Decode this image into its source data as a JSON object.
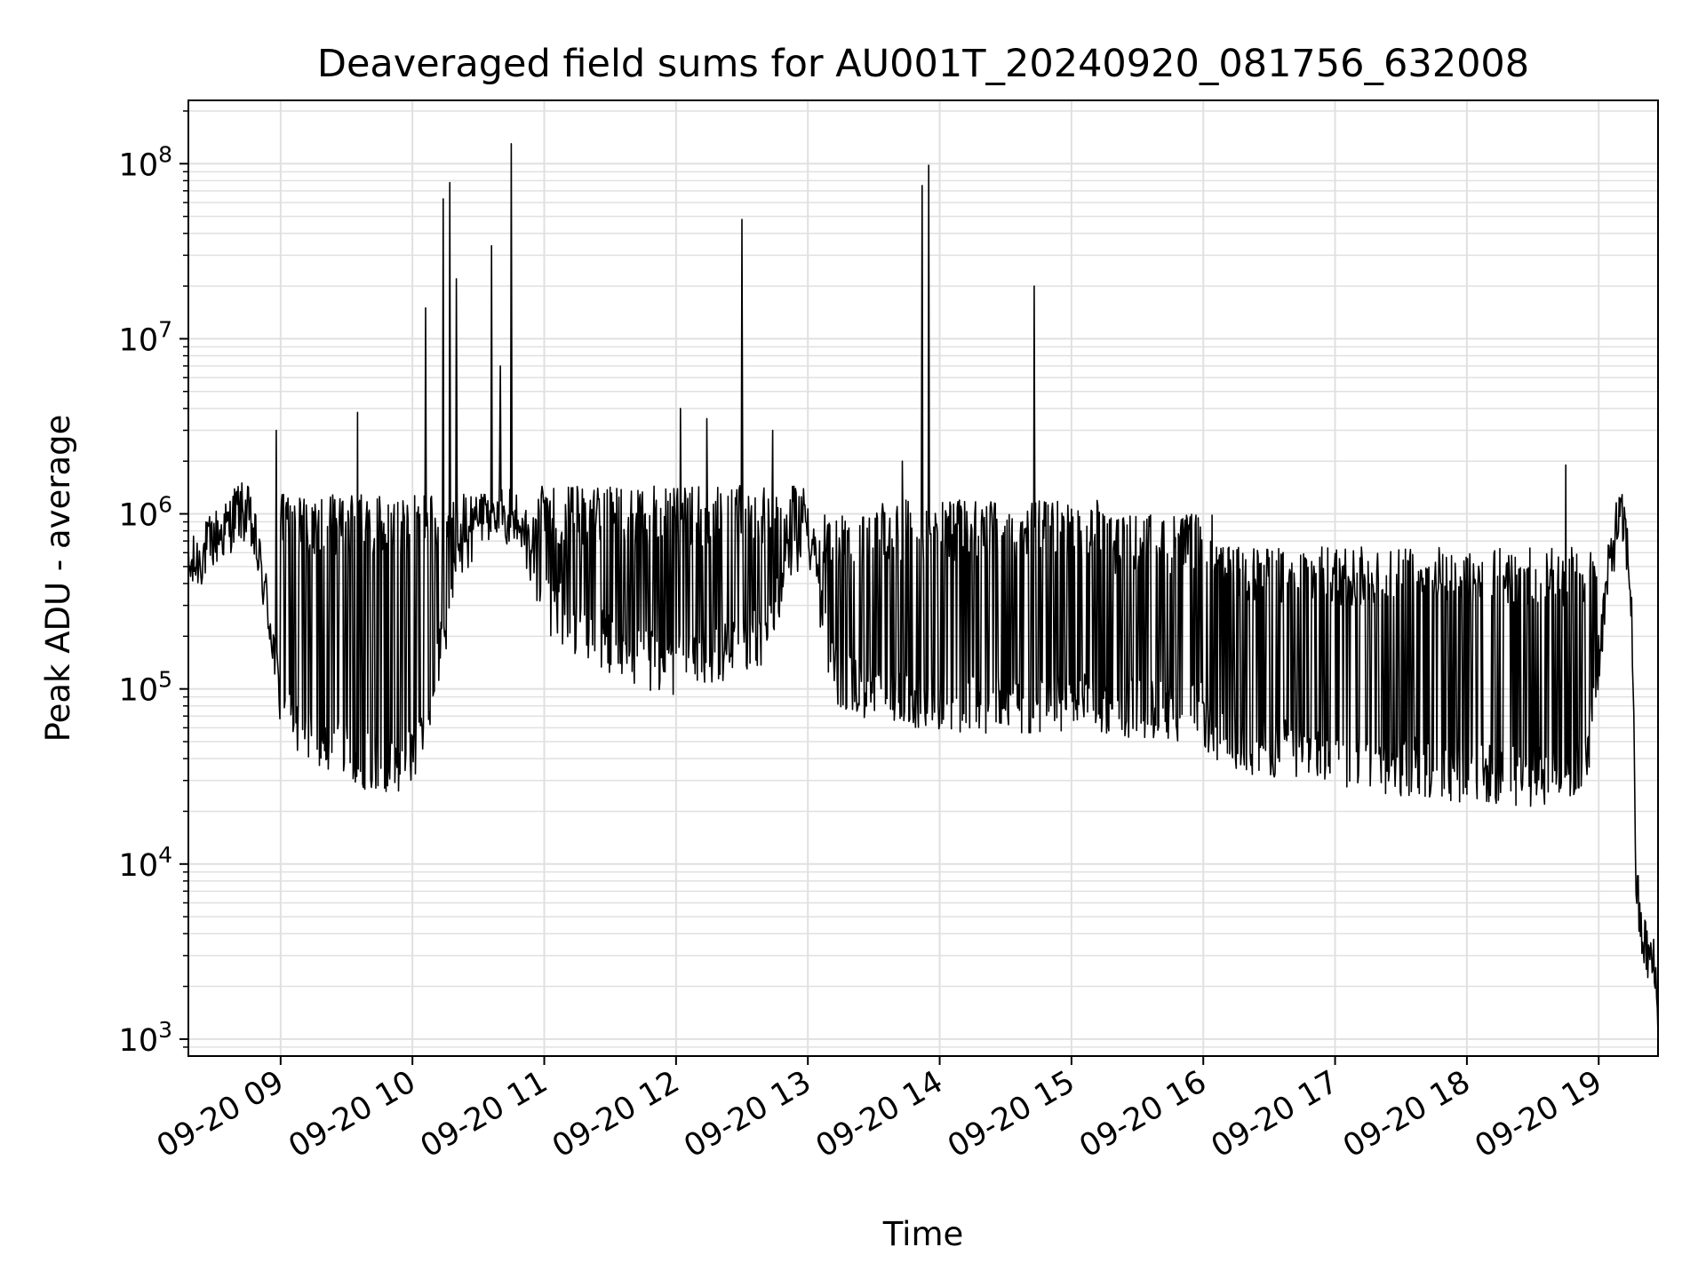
{
  "chart_data": {
    "type": "line",
    "title": "Deaveraged field sums for AU001T_20240920_081756_632008",
    "xlabel": "Time",
    "ylabel": "Peak ADU - average",
    "yscale": "log",
    "ylim": [
      800,
      230000000
    ],
    "xlim": [
      "2024-09-20 08:18",
      "2024-09-20 19:27"
    ],
    "grid": true,
    "line_color": "#000000",
    "grid_color": "#e0e0e0",
    "x_ticks": [
      "2024-09-20 09:00",
      "2024-09-20 10:00",
      "2024-09-20 11:00",
      "2024-09-20 12:00",
      "2024-09-20 13:00",
      "2024-09-20 14:00",
      "2024-09-20 15:00",
      "2024-09-20 16:00",
      "2024-09-20 17:00",
      "2024-09-20 18:00",
      "2024-09-20 19:00"
    ],
    "x_tick_labels": [
      "09-20 09",
      "09-20 10",
      "09-20 11",
      "09-20 12",
      "09-20 13",
      "09-20 14",
      "09-20 15",
      "09-20 16",
      "09-20 17",
      "09-20 18",
      "09-20 19"
    ],
    "y_ticks": [
      1000,
      10000,
      100000,
      1000000,
      10000000,
      100000000
    ],
    "y_tick_labels": [
      {
        "base": "10",
        "exp": "3"
      },
      {
        "base": "10",
        "exp": "4"
      },
      {
        "base": "10",
        "exp": "5"
      },
      {
        "base": "10",
        "exp": "6"
      },
      {
        "base": "10",
        "exp": "7"
      },
      {
        "base": "10",
        "exp": "8"
      }
    ],
    "series": [
      {
        "points": [
          [
            "2024-09-20 08:18",
            450000
          ],
          [
            "2024-09-20 08:24",
            550000
          ],
          [
            "2024-09-20 08:30",
            700000
          ],
          [
            "2024-09-20 08:36",
            800000
          ],
          [
            "2024-09-20 08:40",
            1000000
          ],
          [
            "2024-09-20 08:45",
            950000
          ],
          [
            "2024-09-20 08:48",
            700000
          ],
          [
            "2024-09-20 08:52",
            400000
          ],
          [
            "2024-09-20 08:56",
            200000
          ],
          [
            "2024-09-20 09:00",
            80000
          ],
          [
            "2024-09-20 09:10",
            50000
          ],
          [
            "2024-09-20 09:20",
            45000
          ],
          [
            "2024-09-20 09:30",
            40000
          ],
          [
            "2024-09-20 09:40",
            38000
          ],
          [
            "2024-09-20 09:50",
            36000
          ],
          [
            "2024-09-20 10:00",
            40000
          ],
          [
            "2024-09-20 10:10",
            100000
          ],
          [
            "2024-09-20 10:20",
            500000
          ],
          [
            "2024-09-20 10:30",
            900000
          ],
          [
            "2024-09-20 10:40",
            1100000
          ],
          [
            "2024-09-20 10:50",
            800000
          ],
          [
            "2024-09-20 11:00",
            300000
          ],
          [
            "2024-09-20 11:20",
            200000
          ],
          [
            "2024-09-20 11:40",
            150000
          ],
          [
            "2024-09-20 12:00",
            130000
          ],
          [
            "2024-09-20 12:20",
            150000
          ],
          [
            "2024-09-20 12:40",
            200000
          ],
          [
            "2024-09-20 13:00",
            900000
          ],
          [
            "2024-09-20 13:10",
            120000
          ],
          [
            "2024-09-20 13:30",
            90000
          ],
          [
            "2024-09-20 14:00",
            80000
          ],
          [
            "2024-09-20 14:30",
            75000
          ],
          [
            "2024-09-20 15:00",
            80000
          ],
          [
            "2024-09-20 15:30",
            75000
          ],
          [
            "2024-09-20 16:00",
            70000
          ],
          [
            "2024-09-20 16:05",
            50000
          ],
          [
            "2024-09-20 16:30",
            45000
          ],
          [
            "2024-09-20 17:00",
            40000
          ],
          [
            "2024-09-20 17:30",
            35000
          ],
          [
            "2024-09-20 18:00",
            32000
          ],
          [
            "2024-09-20 18:30",
            30000
          ],
          [
            "2024-09-20 18:55",
            35000
          ],
          [
            "2024-09-20 19:00",
            150000
          ],
          [
            "2024-09-20 19:05",
            500000
          ],
          [
            "2024-09-20 19:09",
            900000
          ],
          [
            "2024-09-20 19:12",
            800000
          ],
          [
            "2024-09-20 19:15",
            300000
          ],
          [
            "2024-09-20 19:17",
            8000
          ],
          [
            "2024-09-20 19:19",
            4000
          ],
          [
            "2024-09-20 19:22",
            3000
          ],
          [
            "2024-09-20 19:25",
            2500
          ],
          [
            "2024-09-20 19:27",
            1500
          ]
        ]
      }
    ],
    "spikes": [
      [
        "2024-09-20 08:58",
        3000000
      ],
      [
        "2024-09-20 09:35",
        3800000
      ],
      [
        "2024-09-20 10:06",
        15000000
      ],
      [
        "2024-09-20 10:14",
        63000000
      ],
      [
        "2024-09-20 10:17",
        78000000
      ],
      [
        "2024-09-20 10:20",
        22000000
      ],
      [
        "2024-09-20 10:36",
        34000000
      ],
      [
        "2024-09-20 10:40",
        7000000
      ],
      [
        "2024-09-20 10:45",
        130000000
      ],
      [
        "2024-09-20 12:02",
        4000000
      ],
      [
        "2024-09-20 12:14",
        3500000
      ],
      [
        "2024-09-20 12:30",
        48000000
      ],
      [
        "2024-09-20 12:44",
        3000000
      ],
      [
        "2024-09-20 13:43",
        2000000
      ],
      [
        "2024-09-20 13:52",
        75000000
      ],
      [
        "2024-09-20 13:55",
        98000000
      ],
      [
        "2024-09-20 14:43",
        20000000
      ],
      [
        "2024-09-20 18:45",
        1900000
      ]
    ]
  }
}
